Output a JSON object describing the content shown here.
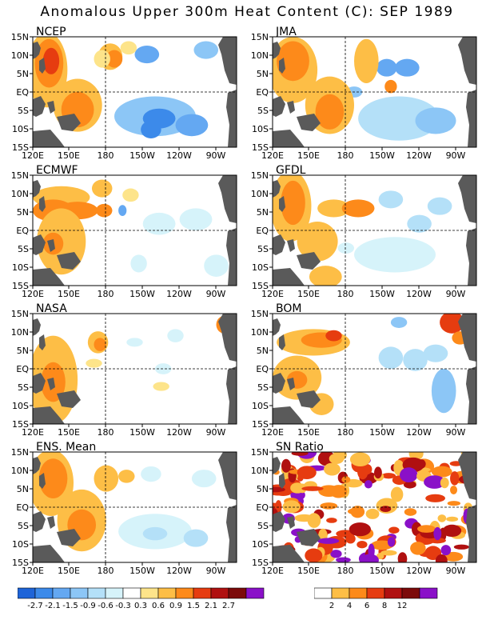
{
  "title": "Anomalous Upper 300m Heat Content (C): SEP 1989",
  "axes": {
    "y_ticks": [
      "15N",
      "10N",
      "5N",
      "EQ",
      "5S",
      "10S",
      "15S"
    ],
    "x_ticks": [
      "120E",
      "150E",
      "180",
      "150W",
      "120W",
      "90W"
    ]
  },
  "panels": [
    {
      "id": "ncep",
      "title": "NCEP"
    },
    {
      "id": "jma",
      "title": "JMA"
    },
    {
      "id": "ecmwf",
      "title": "ECMWF"
    },
    {
      "id": "gfdl",
      "title": "GFDL"
    },
    {
      "id": "nasa",
      "title": "NASA"
    },
    {
      "id": "bom",
      "title": "BOM"
    },
    {
      "id": "ens",
      "title": "ENS. Mean"
    },
    {
      "id": "sn",
      "title": "SN Ratio"
    }
  ],
  "anomaly_colorbar": {
    "colors": [
      "#1e64d8",
      "#3c8aea",
      "#64a8f2",
      "#8cc6f6",
      "#b4e0f8",
      "#d6f3fa",
      "#ffffff",
      "#fde48a",
      "#fdbe46",
      "#fd8a1a",
      "#e63c10",
      "#b01010",
      "#7c0a0a",
      "#8a10c8"
    ],
    "labels": [
      "-2.7",
      "-2.1",
      "-1.5",
      "-0.9",
      "-0.6",
      "-0.3",
      "0.3",
      "0.6",
      "0.9",
      "1.5",
      "2.1",
      "2.7"
    ]
  },
  "sn_colorbar": {
    "colors": [
      "#ffffff",
      "#fdbe46",
      "#fd8a1a",
      "#e63c10",
      "#b01010",
      "#7c0a0a",
      "#8a10c8"
    ],
    "labels": [
      "2",
      "4",
      "6",
      "8",
      "12"
    ]
  },
  "colors": {
    "land": "#5a5a5a",
    "grid": "#000000"
  }
}
